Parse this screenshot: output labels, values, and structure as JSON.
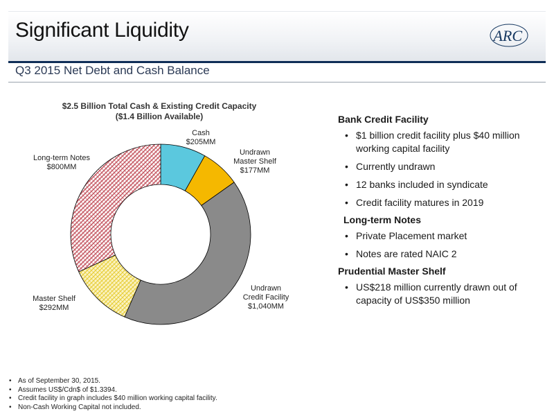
{
  "header": {
    "title": "Significant Liquidity",
    "logo_text": "ARC",
    "subtitle": "Q3 2015 Net Debt and Cash Balance"
  },
  "chart_data": {
    "type": "donut",
    "title": "$2.5 Billion Total Cash & Existing Credit Capacity",
    "subtitle": "($1.4 Billion Available)",
    "unit": "MM",
    "slices": [
      {
        "name": "Cash",
        "value": 205,
        "value_label": "$205MM",
        "color": "#5bc8de",
        "pattern": "solid"
      },
      {
        "name": "Undrawn Master Shelf",
        "value": 177,
        "value_label": "$177MM",
        "color": "#f5b800",
        "pattern": "solid"
      },
      {
        "name": "Undrawn Credit Facility",
        "value": 1040,
        "value_label": "$1,040MM",
        "color": "#8a8a8a",
        "pattern": "solid"
      },
      {
        "name": "Master Shelf",
        "value": 292,
        "value_label": "$292MM",
        "color": "#f4e27a",
        "pattern": "crosshatch"
      },
      {
        "name": "Long-term Notes",
        "value": 800,
        "value_label": "$800MM",
        "color": "#c8606a",
        "pattern": "crosshatch"
      }
    ]
  },
  "panel": {
    "sections": [
      {
        "heading": "Bank Credit Facility",
        "bullets": [
          "$1 billion credit facility plus $40 million working capital facility",
          "Currently undrawn",
          "12 banks included in syndicate",
          "Credit facility matures in 2019"
        ]
      },
      {
        "heading": "Long-term Notes",
        "bullets": [
          "Private Placement market",
          "Notes are rated NAIC 2"
        ]
      },
      {
        "heading": "Prudential Master Shelf",
        "bullets": [
          "US$218 million currently drawn out of capacity of US$350 million"
        ]
      }
    ]
  },
  "footnotes": [
    "As of September 30, 2015.",
    "Assumes US$/Cdn$ of $1.3394.",
    "Credit facility in graph includes $40 million working capital facility.",
    "Non-Cash Working Capital not included."
  ]
}
